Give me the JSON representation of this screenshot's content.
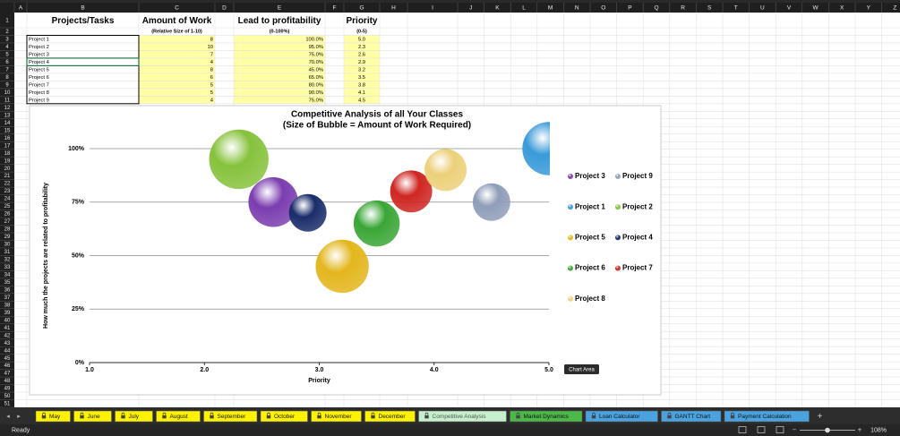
{
  "columns": [
    "A",
    "B",
    "C",
    "D",
    "E",
    "F",
    "G",
    "H",
    "I",
    "J",
    "K",
    "L",
    "M",
    "N",
    "O",
    "P",
    "Q",
    "R",
    "S",
    "T",
    "U",
    "V",
    "W",
    "X",
    "Y",
    "Z"
  ],
  "row_numbers": [
    1,
    2,
    3,
    4,
    5,
    6,
    7,
    8,
    9,
    10,
    11,
    12,
    13,
    14,
    15,
    16,
    17,
    18,
    19,
    20,
    21,
    22,
    23,
    24,
    25,
    26,
    27,
    28,
    29,
    30,
    31,
    32,
    33,
    34,
    35,
    36,
    37,
    38,
    39,
    40,
    41,
    42,
    43,
    44,
    45,
    46,
    47,
    48,
    49,
    50,
    51
  ],
  "table": {
    "headers": {
      "name": "Projects/Tasks",
      "amount": "Amount of Work",
      "amount_note": "(Relative Size of 1-10)",
      "lead": "Lead to profitability",
      "lead_note": "(0-100%)",
      "priority": "Priority",
      "priority_note": "(0-5)"
    },
    "rows": [
      [
        "Project 1",
        "8",
        "100.0%",
        "5.0"
      ],
      [
        "Project 2",
        "10",
        "95.0%",
        "2.3"
      ],
      [
        "Project 3",
        "7",
        "75.0%",
        "2.6"
      ],
      [
        "Project 4",
        "4",
        "70.0%",
        "2.9"
      ],
      [
        "Project 5",
        "8",
        "45.0%",
        "3.2"
      ],
      [
        "Project 6",
        "6",
        "65.0%",
        "3.5"
      ],
      [
        "Project 7",
        "5",
        "80.0%",
        "3.8"
      ],
      [
        "Project 8",
        "5",
        "90.0%",
        "4.1"
      ],
      [
        "Project 9",
        "4",
        "75.0%",
        "4.5"
      ]
    ]
  },
  "chart_data": {
    "type": "bubble",
    "title": "Competitive Analysis of all Your Classes",
    "subtitle": "(Size of Bubble = Amount of Work Required)",
    "x_label": "Priority",
    "y_label": "How much the projects are related to profitability",
    "xlim": [
      1,
      5
    ],
    "xticks": [
      {
        "value": 1,
        "label": "1.0"
      },
      {
        "value": 2,
        "label": "2.0"
      },
      {
        "value": 3,
        "label": "3.0"
      },
      {
        "value": 4,
        "label": "4.0"
      },
      {
        "value": 5,
        "label": "5.0"
      }
    ],
    "ylim": [
      0,
      100
    ],
    "yticks": [
      {
        "value": 0,
        "label": "0%"
      },
      {
        "value": 25,
        "label": "25%"
      },
      {
        "value": 50,
        "label": "50%"
      },
      {
        "value": 75,
        "label": "75%"
      },
      {
        "value": 100,
        "label": "100%"
      }
    ],
    "grid": true,
    "legend": "right",
    "series": [
      {
        "name": "Project 3",
        "color": "#7b3db0",
        "x": [
          2.6
        ],
        "values": [
          75
        ],
        "sizes": [
          7
        ]
      },
      {
        "name": "Project 9",
        "color": "#8f9db8",
        "x": [
          4.5
        ],
        "values": [
          75
        ],
        "sizes": [
          4
        ]
      },
      {
        "name": "Project 1",
        "color": "#3a9ad9",
        "x": [
          5.0
        ],
        "values": [
          100
        ],
        "sizes": [
          8
        ]
      },
      {
        "name": "Project 2",
        "color": "#86c23c",
        "x": [
          2.3
        ],
        "values": [
          95
        ],
        "sizes": [
          10
        ]
      },
      {
        "name": "Project 5",
        "color": "#e3b61c",
        "x": [
          3.2
        ],
        "values": [
          45
        ],
        "sizes": [
          8
        ]
      },
      {
        "name": "Project 4",
        "color": "#1a2d6a",
        "x": [
          2.9
        ],
        "values": [
          70
        ],
        "sizes": [
          4
        ]
      },
      {
        "name": "Project 6",
        "color": "#3aa636",
        "x": [
          3.5
        ],
        "values": [
          65
        ],
        "sizes": [
          6
        ]
      },
      {
        "name": "Project 7",
        "color": "#cf2622",
        "x": [
          3.8
        ],
        "values": [
          80
        ],
        "sizes": [
          5
        ]
      },
      {
        "name": "Project 8",
        "color": "#ecd07a",
        "x": [
          4.1
        ],
        "values": [
          90
        ],
        "sizes": [
          5
        ]
      }
    ]
  },
  "tooltip": "Chart Area",
  "tabs": [
    {
      "label": "May",
      "color": "#fff200"
    },
    {
      "label": "June",
      "color": "#fff200"
    },
    {
      "label": "July",
      "color": "#fff200"
    },
    {
      "label": "August",
      "color": "#fff200"
    },
    {
      "label": "September",
      "color": "#fff200"
    },
    {
      "label": "October",
      "color": "#fff200"
    },
    {
      "label": "November",
      "color": "#fff200"
    },
    {
      "label": "December",
      "color": "#fff200"
    },
    {
      "label": "Competitive Analysis",
      "color": "#c6efce"
    },
    {
      "label": "Market Dynamics",
      "color": "#4cb848"
    },
    {
      "label": "Loan Calculator",
      "color": "#4aa3df"
    },
    {
      "label": "GANTT Chart",
      "color": "#4aa3df"
    },
    {
      "label": "Payment Calculation",
      "color": "#4aa3df"
    }
  ],
  "status": "Ready",
  "zoom": "108%"
}
